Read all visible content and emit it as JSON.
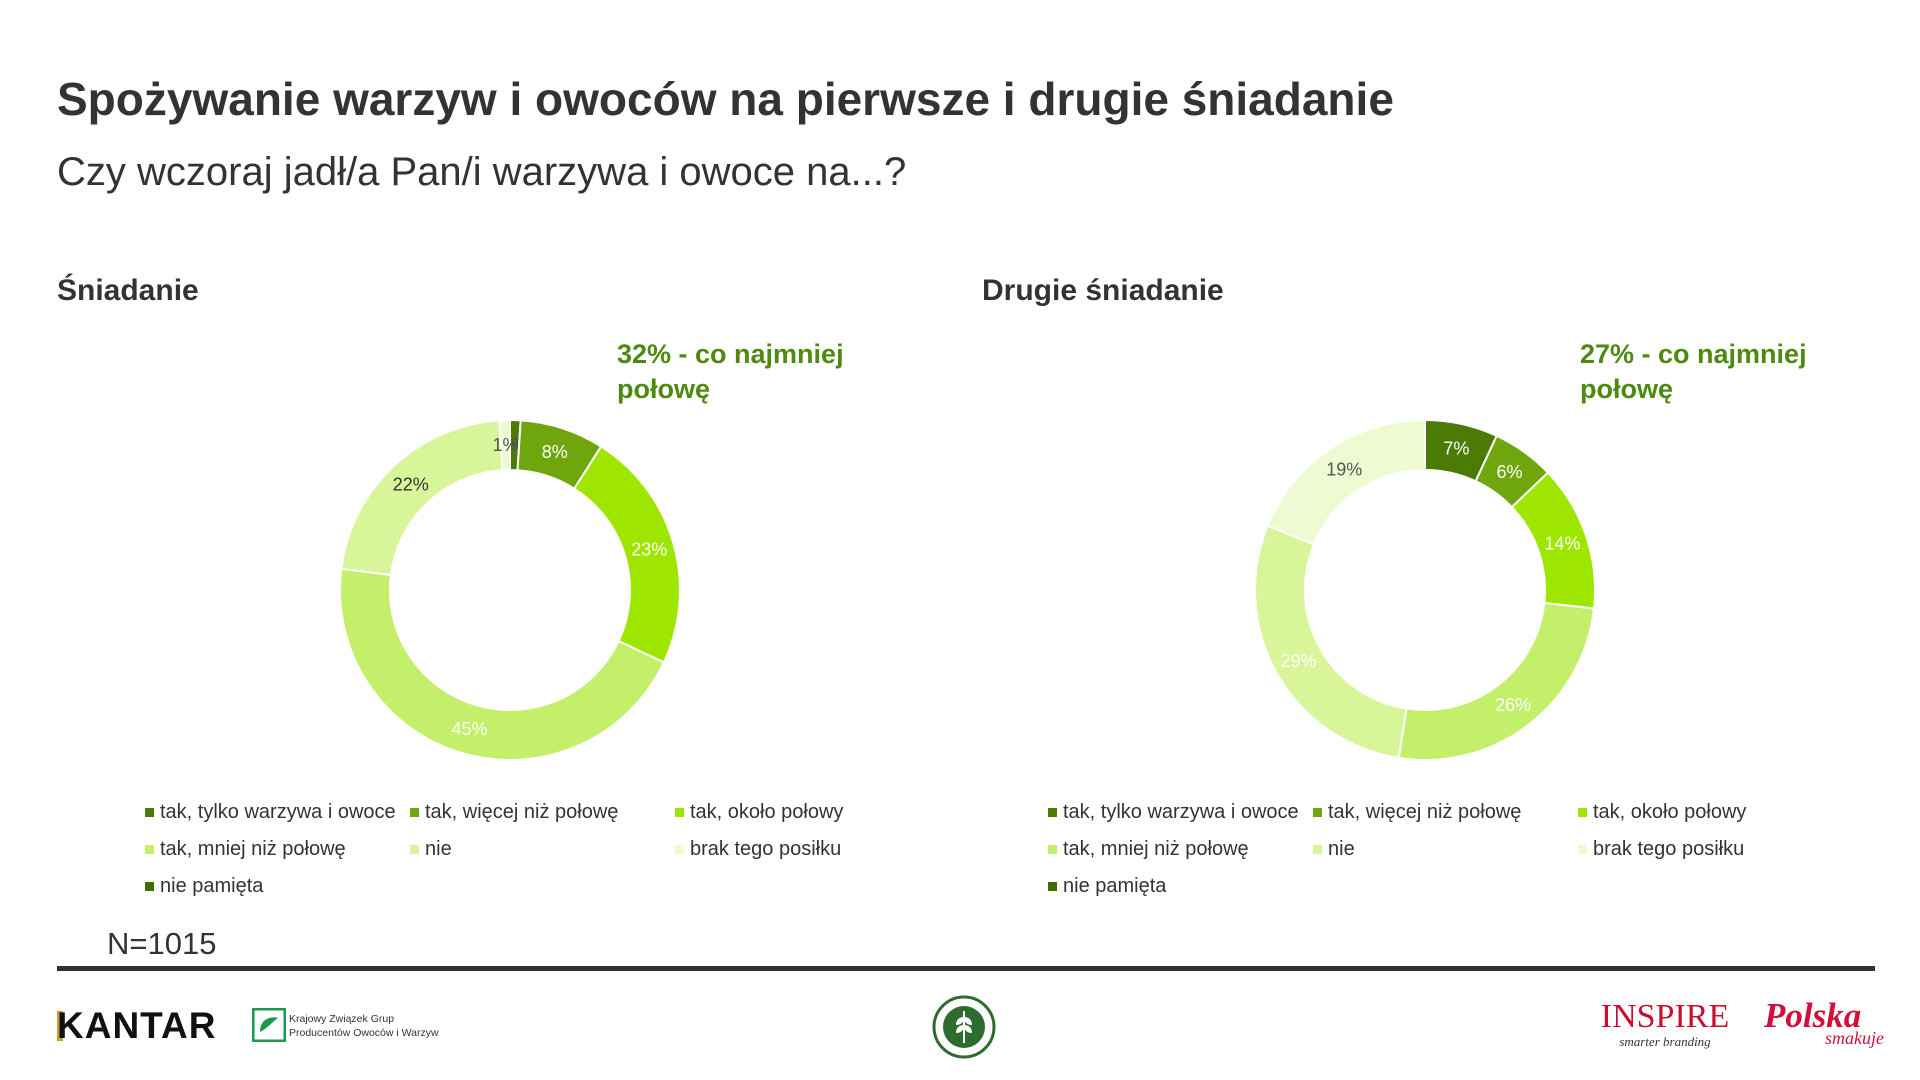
{
  "title": "Spożywanie warzyw i owoców na pierwsze i drugie śniadanie",
  "subtitle": "Czy wczoraj jadł/a Pan/i warzywa i owoce na...?",
  "sample": "N=1015",
  "legend": {
    "items": [
      {
        "label": "tak, tylko warzywa i owoce",
        "color": "#4b7a05"
      },
      {
        "label": "tak, więcej niż połowę",
        "color": "#6fa60d"
      },
      {
        "label": "tak, około połowy",
        "color": "#9ee600"
      },
      {
        "label": "tak, mniej niż połowę",
        "color": "#c3ef6a"
      },
      {
        "label": "nie",
        "color": "#d9f59a"
      },
      {
        "label": "brak tego posiłku",
        "color": "#eefad2"
      },
      {
        "label": "nie pamięta",
        "color": "#3f6d04"
      }
    ]
  },
  "chart_data": [
    {
      "type": "pie",
      "title": "Śniadanie",
      "annotation": "32% - co najmniej połowę",
      "categories": [
        "tak, tylko warzywa i owoce",
        "tak, więcej niż połowę",
        "tak, około połowy",
        "tak, mniej niż połowę",
        "nie",
        "brak tego posiłku",
        "nie pamięta"
      ],
      "values": [
        1,
        8,
        23,
        45,
        22,
        1,
        0
      ],
      "labels": [
        "1%",
        "8%",
        "23%",
        "45%",
        "22%",
        "1%",
        ""
      ],
      "label_colors": [
        "#444",
        "#ffffff",
        "#ffffff",
        "#ffffff",
        "#333",
        "#555",
        "#333"
      ],
      "colors": [
        "#4b7a05",
        "#6fa60d",
        "#9ee600",
        "#c3ef6a",
        "#d9f59a",
        "#eefad2",
        "#3f6d04"
      ]
    },
    {
      "type": "pie",
      "title": "Drugie śniadanie",
      "annotation": "27% - co najmniej połowę",
      "categories": [
        "tak, tylko warzywa i owoce",
        "tak, więcej niż połowę",
        "tak, około połowy",
        "tak, mniej niż połowę",
        "nie",
        "brak tego posiłku",
        "nie pamięta"
      ],
      "values": [
        7,
        6,
        14,
        26,
        29,
        19,
        0
      ],
      "labels": [
        "7%",
        "6%",
        "14%",
        "26%",
        "29%",
        "19%",
        ""
      ],
      "label_colors": [
        "#ffffff",
        "#ffffff",
        "#ffffff",
        "#ffffff",
        "#ffffff",
        "#555",
        "#333"
      ],
      "colors": [
        "#4b7a05",
        "#6fa60d",
        "#9ee600",
        "#c3ef6a",
        "#d9f59a",
        "#eefad2",
        "#3f6d04"
      ]
    }
  ],
  "logos": {
    "kantar": "KANTAR",
    "kzgpow_line1": "Krajowy Związek Grup",
    "kzgpow_line2": "Producentów Owoców i Warzyw",
    "inspire_name": "INSPIRE",
    "inspire_tag": "smarter branding",
    "polska_name": "Polska",
    "polska_sub": "smakuje",
    "seal_color": "#2e6b2e"
  }
}
